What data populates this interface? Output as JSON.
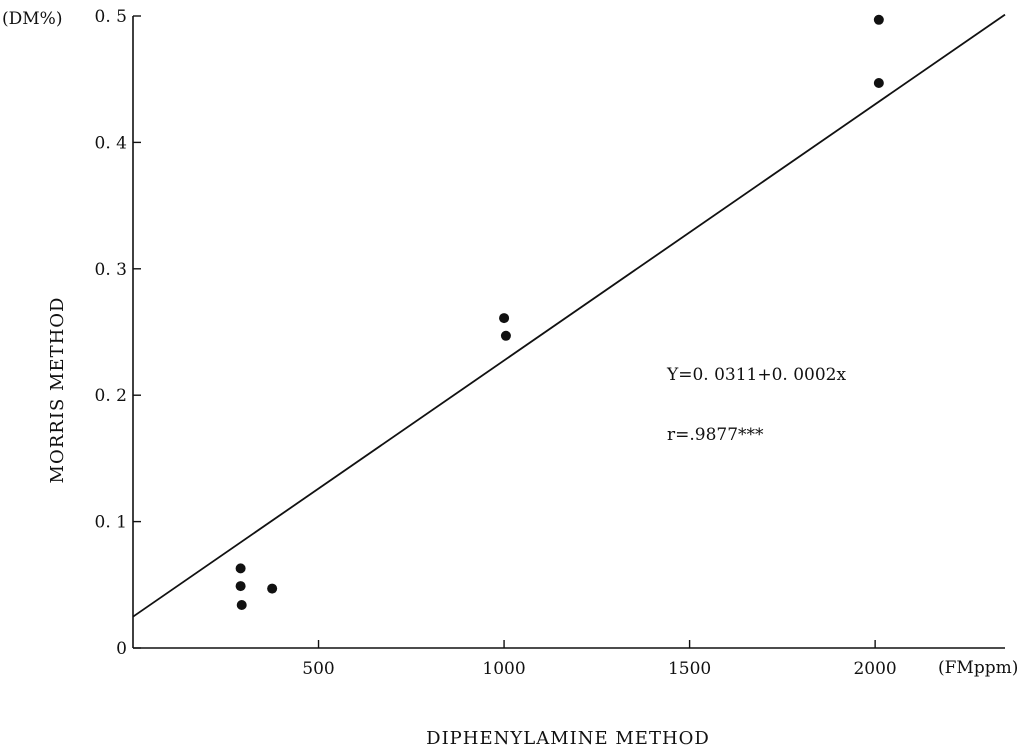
{
  "chart_data": {
    "type": "scatter",
    "title": "",
    "xlabel": "DIPHENYLAMINE METHOD",
    "ylabel": "MORRIS METHOD",
    "x_unit": "(FMppm)",
    "y_unit": "(DM%)",
    "xlim": [
      0,
      2350
    ],
    "ylim": [
      0,
      0.5
    ],
    "x_ticks": [
      {
        "value": 500,
        "label": "500"
      },
      {
        "value": 1000,
        "label": "1000"
      },
      {
        "value": 1500,
        "label": "1500"
      },
      {
        "value": 2000,
        "label": "2000"
      }
    ],
    "y_ticks": [
      {
        "value": 0,
        "label": "0"
      },
      {
        "value": 0.1,
        "label": "0. 1"
      },
      {
        "value": 0.2,
        "label": "0. 2"
      },
      {
        "value": 0.3,
        "label": "0. 3"
      },
      {
        "value": 0.4,
        "label": "0. 4"
      },
      {
        "value": 0.5,
        "label": "0. 5"
      }
    ],
    "grid": false,
    "series": [
      {
        "points": [
          {
            "x": 290,
            "y": 0.063
          },
          {
            "x": 290,
            "y": 0.049
          },
          {
            "x": 293,
            "y": 0.034
          },
          {
            "x": 375,
            "y": 0.047
          },
          {
            "x": 1000,
            "y": 0.261
          },
          {
            "x": 1005,
            "y": 0.247
          },
          {
            "x": 2010,
            "y": 0.497
          },
          {
            "x": 2010,
            "y": 0.447
          }
        ]
      }
    ],
    "regression": {
      "intercept": 0.0311,
      "slope": 0.0002,
      "x_range": [
        0,
        2350
      ]
    },
    "annotations": {
      "equation": "Y=0. 0311+0. 0002x",
      "r_value": "r=.9877***"
    }
  }
}
